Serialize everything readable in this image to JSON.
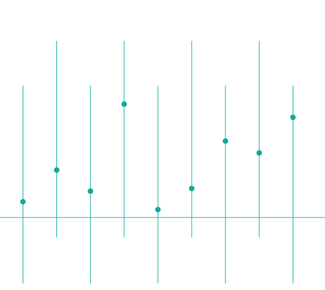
{
  "colors": {
    "accent": "#1fb5a8",
    "point": "#12a89b",
    "background": "#ffffff"
  },
  "chart_data": {
    "type": "scatter",
    "title": "",
    "xlabel": "",
    "ylabel": "",
    "grid": false,
    "legend": "none",
    "x": [
      1,
      2,
      3,
      4,
      5,
      6,
      7,
      8,
      9
    ],
    "ylim": [
      -0.55,
      1.65
    ],
    "xlim": [
      0.32,
      9.95
    ],
    "baseline": 0,
    "series": [
      {
        "values": [
          0.12,
          0.36,
          0.2,
          0.86,
          0.06,
          0.22,
          0.58,
          0.49,
          0.76
        ]
      }
    ],
    "error_bars": [
      {
        "low": -0.5,
        "high": 1.0
      },
      {
        "low": -0.15,
        "high": 1.34
      },
      {
        "low": -0.5,
        "high": 1.0
      },
      {
        "low": -0.15,
        "high": 1.34
      },
      {
        "low": -0.5,
        "high": 1.0
      },
      {
        "low": -0.15,
        "high": 1.34
      },
      {
        "low": -0.5,
        "high": 1.0
      },
      {
        "low": -0.15,
        "high": 1.34
      },
      {
        "low": -0.5,
        "high": 1.0
      }
    ]
  }
}
